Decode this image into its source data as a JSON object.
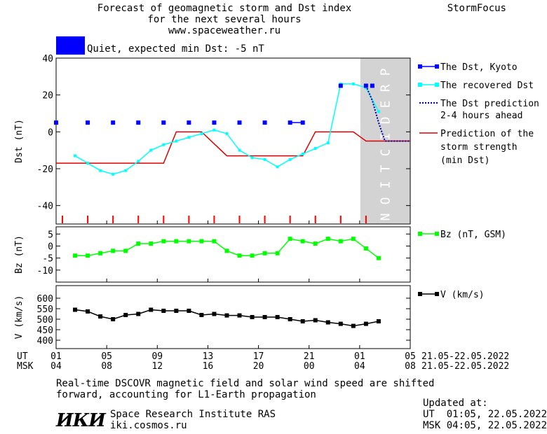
{
  "header": {
    "title_line1": "Forecast of geomagnetic storm and Dst index",
    "title_line2": "for the next several hours",
    "title_line3": "www.spaceweather.ru",
    "brand": "StormFocus"
  },
  "status": {
    "color": "#0000ff",
    "label": "Quiet, expected min Dst: -5 nT"
  },
  "colors": {
    "dst_kyoto": "#0000ff",
    "dst_recovered": "#00ffff",
    "dst_prediction": "#0000aa",
    "storm_strength": "#dd0000",
    "bz": "#00ff00",
    "speed": "#000000",
    "prediction_zone": "#d3d3d3",
    "tick_marks": "#ff0000"
  },
  "prediction_label": "PREDICTION",
  "chart_data": [
    {
      "type": "line",
      "panel": "dst",
      "ylabel": "Dst (nT)",
      "ylim": [
        -50,
        40
      ],
      "yticks": [
        40,
        20,
        0,
        -20,
        -40
      ],
      "xlim": [
        0,
        28
      ],
      "prediction_zone_start_hour": 24,
      "series": [
        {
          "name": "The Dst, Kyoto",
          "points": [
            [
              -0.5,
              5
            ],
            [
              2,
              5
            ],
            [
              4,
              5
            ],
            [
              6,
              5
            ],
            [
              8,
              5
            ],
            [
              10,
              5
            ],
            [
              12,
              5
            ],
            [
              14,
              5
            ],
            [
              16,
              5
            ],
            [
              18,
              5
            ],
            [
              19,
              5
            ],
            [
              22,
              25
            ],
            [
              24,
              25
            ],
            [
              24.5,
              25
            ]
          ],
          "segments": [
            [
              18,
              19
            ]
          ]
        },
        {
          "name": "The recovered Dst",
          "points": [
            [
              1,
              -13
            ],
            [
              2,
              -17
            ],
            [
              3,
              -21
            ],
            [
              4,
              -23
            ],
            [
              5,
              -21
            ],
            [
              6,
              -16
            ],
            [
              7,
              -10
            ],
            [
              8,
              -7
            ],
            [
              9,
              -5
            ],
            [
              10,
              -3
            ],
            [
              11,
              -1
            ],
            [
              12,
              1
            ],
            [
              13,
              -1
            ],
            [
              14,
              -10
            ],
            [
              15,
              -14
            ],
            [
              16,
              -15
            ],
            [
              17,
              -19
            ],
            [
              18,
              -15
            ],
            [
              19,
              -12
            ],
            [
              20,
              -9
            ],
            [
              21,
              -6
            ],
            [
              22,
              26
            ],
            [
              23,
              26
            ],
            [
              24,
              24
            ],
            [
              25,
              11
            ]
          ]
        },
        {
          "name": "The Dst prediction 2-4 hours ahead",
          "points": [
            [
              24,
              25
            ],
            [
              24.5,
              17
            ],
            [
              25,
              5
            ],
            [
              25.5,
              -5
            ],
            [
              27.5,
              -5
            ]
          ]
        },
        {
          "name": "Prediction of the storm strength (min Dst)",
          "points": [
            [
              -0.5,
              -17
            ],
            [
              8,
              -17
            ],
            [
              9,
              0
            ],
            [
              11,
              0
            ],
            [
              13,
              -13
            ],
            [
              19,
              -13
            ],
            [
              20,
              0
            ],
            [
              23,
              0
            ],
            [
              24,
              -5
            ],
            [
              27.5,
              -5
            ]
          ]
        }
      ],
      "tick_marks": [
        0.5,
        2.5,
        4.5,
        6.5,
        8.5,
        10.5,
        12.5,
        14.5,
        16.5,
        18.5,
        20.5,
        22.5,
        24.5
      ]
    },
    {
      "type": "line",
      "panel": "bz",
      "ylabel": "Bz (nT)",
      "ylim": [
        -15,
        8
      ],
      "yticks": [
        5,
        0,
        -5,
        -10
      ],
      "series": [
        {
          "name": "Bz (nT, GSM)",
          "points": [
            [
              1,
              -4
            ],
            [
              2,
              -4
            ],
            [
              3,
              -3
            ],
            [
              4,
              -2
            ],
            [
              5,
              -2
            ],
            [
              6,
              1
            ],
            [
              7,
              1
            ],
            [
              8,
              2
            ],
            [
              9,
              2
            ],
            [
              10,
              2
            ],
            [
              11,
              2
            ],
            [
              12,
              2
            ],
            [
              13,
              -2
            ],
            [
              14,
              -4
            ],
            [
              15,
              -4
            ],
            [
              16,
              -3
            ],
            [
              17,
              -3
            ],
            [
              18,
              3
            ],
            [
              19,
              2
            ],
            [
              20,
              1
            ],
            [
              21,
              3
            ],
            [
              22,
              2
            ],
            [
              23,
              3
            ],
            [
              24,
              -1
            ],
            [
              25,
              -5
            ]
          ]
        }
      ]
    },
    {
      "type": "line",
      "panel": "speed",
      "ylabel": "V (km/s)",
      "ylim": [
        360,
        660
      ],
      "yticks": [
        600,
        550,
        500,
        450,
        400
      ],
      "series": [
        {
          "name": "V (km/s)",
          "points": [
            [
              1,
              545
            ],
            [
              2,
              537
            ],
            [
              3,
              513
            ],
            [
              4,
              500
            ],
            [
              5,
              520
            ],
            [
              6,
              525
            ],
            [
              7,
              545
            ],
            [
              8,
              540
            ],
            [
              9,
              540
            ],
            [
              10,
              540
            ],
            [
              11,
              520
            ],
            [
              12,
              525
            ],
            [
              13,
              518
            ],
            [
              14,
              518
            ],
            [
              15,
              510
            ],
            [
              16,
              510
            ],
            [
              17,
              510
            ],
            [
              18,
              500
            ],
            [
              19,
              490
            ],
            [
              20,
              495
            ],
            [
              21,
              485
            ],
            [
              22,
              478
            ],
            [
              23,
              468
            ],
            [
              24,
              478
            ],
            [
              25,
              490
            ]
          ]
        }
      ]
    }
  ],
  "x_axis": {
    "ut_label": "UT",
    "msk_label": "MSK",
    "ut_ticks": [
      "01",
      "05",
      "09",
      "13",
      "17",
      "21",
      "01",
      "05"
    ],
    "msk_ticks": [
      "04",
      "08",
      "12",
      "16",
      "20",
      "00",
      "04",
      "08"
    ],
    "date_range_ut": "21.05-22.05.2022",
    "date_range_msk": "21.05-22.05.2022"
  },
  "legend": {
    "kyoto": "The Dst, Kyoto",
    "recovered": "The recovered Dst",
    "prediction_line1": "The Dst prediction",
    "prediction_line2": "2-4 hours ahead",
    "strength_line1": "Prediction of the",
    "strength_line2": "storm strength",
    "strength_line3": "(min Dst)",
    "bz": "Bz (nT, GSM)",
    "speed": "V (km/s)"
  },
  "footer": {
    "note_line1": "Real-time DSCOVR magnetic field and solar wind speed are shifted",
    "note_line2": "forward, accounting for L1-Earth propagation",
    "logo_text": "ИКИ",
    "institute": "Space Research Institute RAS",
    "site": "iki.cosmos.ru",
    "updated_label": "Updated at:",
    "updated_ut": "UT  01:05, 22.05.2022",
    "updated_msk": "MSK 04:05, 22.05.2022"
  }
}
